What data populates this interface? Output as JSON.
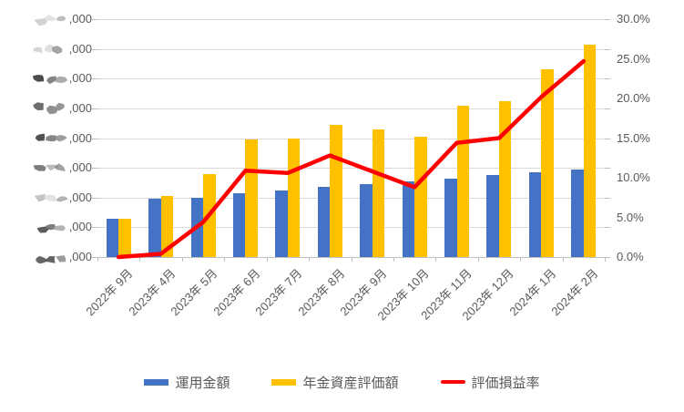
{
  "chart_data": {
    "type": "combo",
    "categories": [
      "2022年 9月",
      "2023年 4月",
      "2023年 5月",
      "2023年 6月",
      "2023年 7月",
      "2023年 8月",
      "2023年 9月",
      "2023年 10月",
      "2023年 11月",
      "2023年 12月",
      "2024年 1月",
      "2024年 2月"
    ],
    "series": [
      {
        "id": "invested-amount",
        "name": "運用金額",
        "type": "bar",
        "color": "#4472c4",
        "axis": "left",
        "values": [
          1.3,
          1.95,
          2.0,
          2.15,
          2.25,
          2.35,
          2.45,
          2.55,
          2.65,
          2.75,
          2.85,
          2.95
        ]
      },
      {
        "id": "pension-asset-value",
        "name": "年金資産評価額",
        "type": "bar",
        "color": "#ffc000",
        "axis": "left",
        "values": [
          1.3,
          2.05,
          2.8,
          3.95,
          4.0,
          4.45,
          4.3,
          4.05,
          5.1,
          5.25,
          6.3,
          7.15
        ]
      },
      {
        "id": "valuation-pl-rate",
        "name": "評価損益率",
        "type": "line",
        "color": "#ff0000",
        "axis": "right",
        "values_pct": [
          0.0,
          0.4,
          4.4,
          10.9,
          10.6,
          12.8,
          10.8,
          8.8,
          14.4,
          15.0,
          20.2,
          24.7
        ]
      }
    ],
    "left_axis": {
      "note": "tick labels partially redacted with scribbles; only thousands suffix visible",
      "range_gridline_units": [
        0,
        8
      ],
      "labels_bottom_to_top": [
        {
          "suffix": ",000",
          "masked": true,
          "mask": "dark"
        },
        {
          "suffix": ",000",
          "masked": true,
          "mask": "dark"
        },
        {
          "suffix": ",000",
          "masked": true,
          "mask": "light"
        },
        {
          "suffix": ",000",
          "masked": true,
          "mask": "mixed"
        },
        {
          "suffix": ",000",
          "masked": true,
          "mask": "dark"
        },
        {
          "suffix": ",000",
          "masked": true,
          "mask": "dark"
        },
        {
          "suffix": ",000",
          "masked": true,
          "mask": "dark"
        },
        {
          "suffix": ",000",
          "masked": true,
          "mask": "light"
        },
        {
          "suffix": ",000",
          "masked": true,
          "mask": "light"
        }
      ]
    },
    "right_axis": {
      "range_pct": [
        0,
        30
      ],
      "labels_bottom_to_top": [
        {
          "label": "0.0%",
          "pct": 0
        },
        {
          "label": "5.0%",
          "pct": 5
        },
        {
          "label": "10.0%",
          "pct": 10
        },
        {
          "label": "15.0%",
          "pct": 15
        },
        {
          "label": "20.0%",
          "pct": 20
        },
        {
          "label": "25.0%",
          "pct": 25
        },
        {
          "label": "30.0%",
          "pct": 30
        }
      ]
    },
    "legend": {
      "items": [
        {
          "label": "運用金額",
          "swatch": "bar",
          "color": "#4472c4"
        },
        {
          "label": "年金資産評価額",
          "swatch": "bar",
          "color": "#ffc000"
        },
        {
          "label": "評価損益率",
          "swatch": "line",
          "color": "#ff0000"
        }
      ]
    },
    "grid": true,
    "legend_position": "bottom",
    "colors": {
      "gridline": "#d9d9d9",
      "axis_line": "#bfbfbf",
      "axis_text": "#595959"
    }
  }
}
